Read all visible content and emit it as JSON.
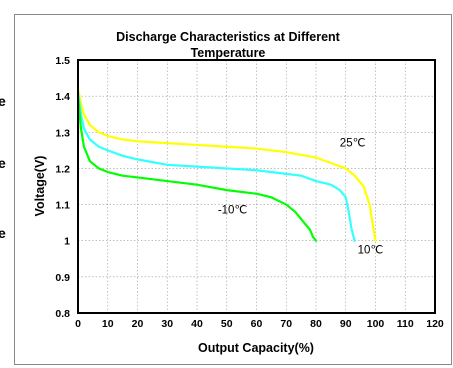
{
  "chart_data": {
    "type": "line",
    "title": "Discharge Characteristics at Different Temperature",
    "xlabel": "Output Capacity(%)",
    "ylabel": "Voltage(V)",
    "xlim": [
      0,
      120
    ],
    "ylim": [
      0.8,
      1.5
    ],
    "xticks": [
      0,
      10,
      20,
      30,
      40,
      50,
      60,
      70,
      80,
      90,
      100,
      110,
      120
    ],
    "yticks": [
      0.8,
      0.9,
      1,
      1.1,
      1.2,
      1.3,
      1.4,
      1.5
    ],
    "grid": true,
    "series": [
      {
        "name": "25℃",
        "color": "#ffff00",
        "x": [
          0,
          1,
          2,
          4,
          7,
          10,
          15,
          20,
          30,
          40,
          50,
          60,
          70,
          80,
          85,
          90,
          93,
          96,
          98,
          99,
          100
        ],
        "y": [
          1.42,
          1.38,
          1.35,
          1.32,
          1.3,
          1.29,
          1.28,
          1.275,
          1.27,
          1.265,
          1.26,
          1.255,
          1.245,
          1.23,
          1.215,
          1.2,
          1.18,
          1.15,
          1.1,
          1.05,
          1.0
        ]
      },
      {
        "name": "10℃",
        "color": "#33ffff",
        "x": [
          0,
          1,
          2,
          4,
          7,
          10,
          15,
          20,
          30,
          40,
          50,
          60,
          70,
          75,
          80,
          85,
          88,
          90,
          91,
          92,
          93
        ],
        "y": [
          1.41,
          1.35,
          1.31,
          1.28,
          1.26,
          1.25,
          1.235,
          1.225,
          1.21,
          1.205,
          1.2,
          1.195,
          1.185,
          1.18,
          1.165,
          1.155,
          1.14,
          1.12,
          1.08,
          1.03,
          1.0
        ]
      },
      {
        "name": "-10℃",
        "color": "#00ff00",
        "x": [
          0,
          1,
          2,
          4,
          7,
          10,
          15,
          20,
          30,
          40,
          50,
          60,
          65,
          70,
          73,
          76,
          78,
          79,
          80
        ],
        "y": [
          1.4,
          1.31,
          1.26,
          1.22,
          1.2,
          1.19,
          1.18,
          1.175,
          1.165,
          1.155,
          1.14,
          1.13,
          1.12,
          1.1,
          1.08,
          1.05,
          1.03,
          1.01,
          1.0
        ]
      }
    ],
    "annotations": [
      {
        "text": "25℃",
        "x": 88,
        "y": 1.26
      },
      {
        "text": "-10℃",
        "x": 47,
        "y": 1.075
      },
      {
        "text": "10℃",
        "x": 94,
        "y": 0.965
      }
    ]
  },
  "side_marks": [
    "e",
    "e",
    "e"
  ]
}
